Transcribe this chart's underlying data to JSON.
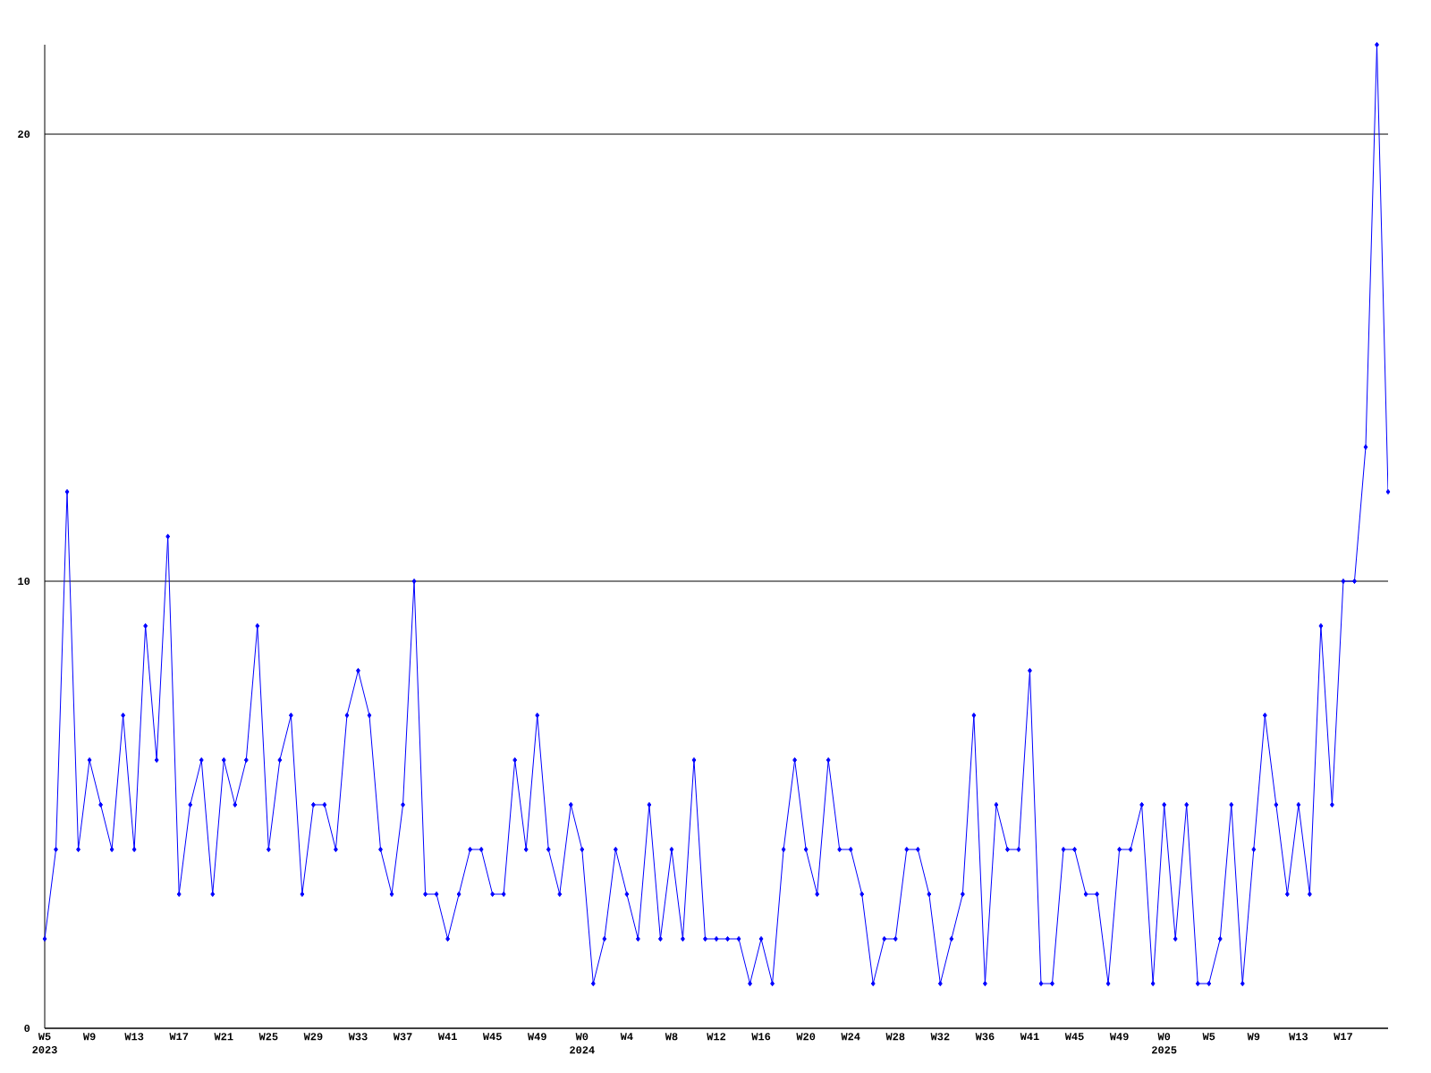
{
  "chart_data": {
    "type": "line",
    "categories": [
      "W5 2023",
      null,
      null,
      null,
      "W9",
      null,
      null,
      null,
      "W13",
      null,
      null,
      null,
      "W17",
      null,
      null,
      null,
      "W21",
      null,
      null,
      null,
      "W25",
      null,
      null,
      null,
      "W29",
      null,
      null,
      null,
      "W33",
      null,
      null,
      null,
      "W37",
      null,
      null,
      null,
      "W41",
      null,
      null,
      null,
      "W45",
      null,
      null,
      null,
      "W49",
      null,
      null,
      null,
      "W0 2024",
      null,
      null,
      null,
      "W4",
      null,
      null,
      null,
      "W8",
      null,
      null,
      null,
      "W12",
      null,
      null,
      null,
      "W16",
      null,
      null,
      null,
      "W20",
      null,
      null,
      null,
      "W24",
      null,
      null,
      null,
      "W28",
      null,
      null,
      null,
      "W32",
      null,
      null,
      null,
      "W36",
      null,
      null,
      null,
      "W41",
      null,
      null,
      null,
      "W45",
      null,
      null,
      null,
      "W49",
      null,
      null,
      null,
      "W0 2025",
      null,
      null,
      null,
      "W5",
      null,
      null,
      null,
      "W9",
      null,
      null,
      null,
      "W13",
      null,
      null,
      null,
      "W17",
      null,
      null,
      null,
      null
    ],
    "values": [
      2,
      4,
      12,
      4,
      6,
      5,
      4,
      7,
      4,
      9,
      6,
      11,
      3,
      5,
      6,
      3,
      6,
      5,
      6,
      9,
      4,
      6,
      7,
      3,
      5,
      5,
      4,
      7,
      8,
      7,
      4,
      3,
      5,
      10,
      3,
      3,
      2,
      3,
      4,
      4,
      3,
      3,
      6,
      4,
      7,
      4,
      3,
      5,
      4,
      1,
      2,
      4,
      3,
      2,
      5,
      2,
      4,
      2,
      6,
      2,
      2,
      2,
      2,
      1,
      2,
      1,
      4,
      6,
      4,
      3,
      6,
      4,
      4,
      3,
      1,
      2,
      2,
      4,
      4,
      3,
      1,
      2,
      3,
      7,
      1,
      5,
      4,
      4,
      8,
      1,
      1,
      4,
      4,
      3,
      3,
      1,
      4,
      4,
      5,
      1,
      5,
      2,
      5,
      1,
      1,
      2,
      5,
      1,
      4,
      7,
      5,
      3,
      5,
      3,
      9,
      5,
      10,
      10,
      13,
      22,
      12
    ],
    "color": "#0000ff",
    "ylim": [
      0,
      22
    ],
    "yticks": [
      0,
      10,
      20
    ],
    "grid": "y",
    "marker": "diamond"
  }
}
